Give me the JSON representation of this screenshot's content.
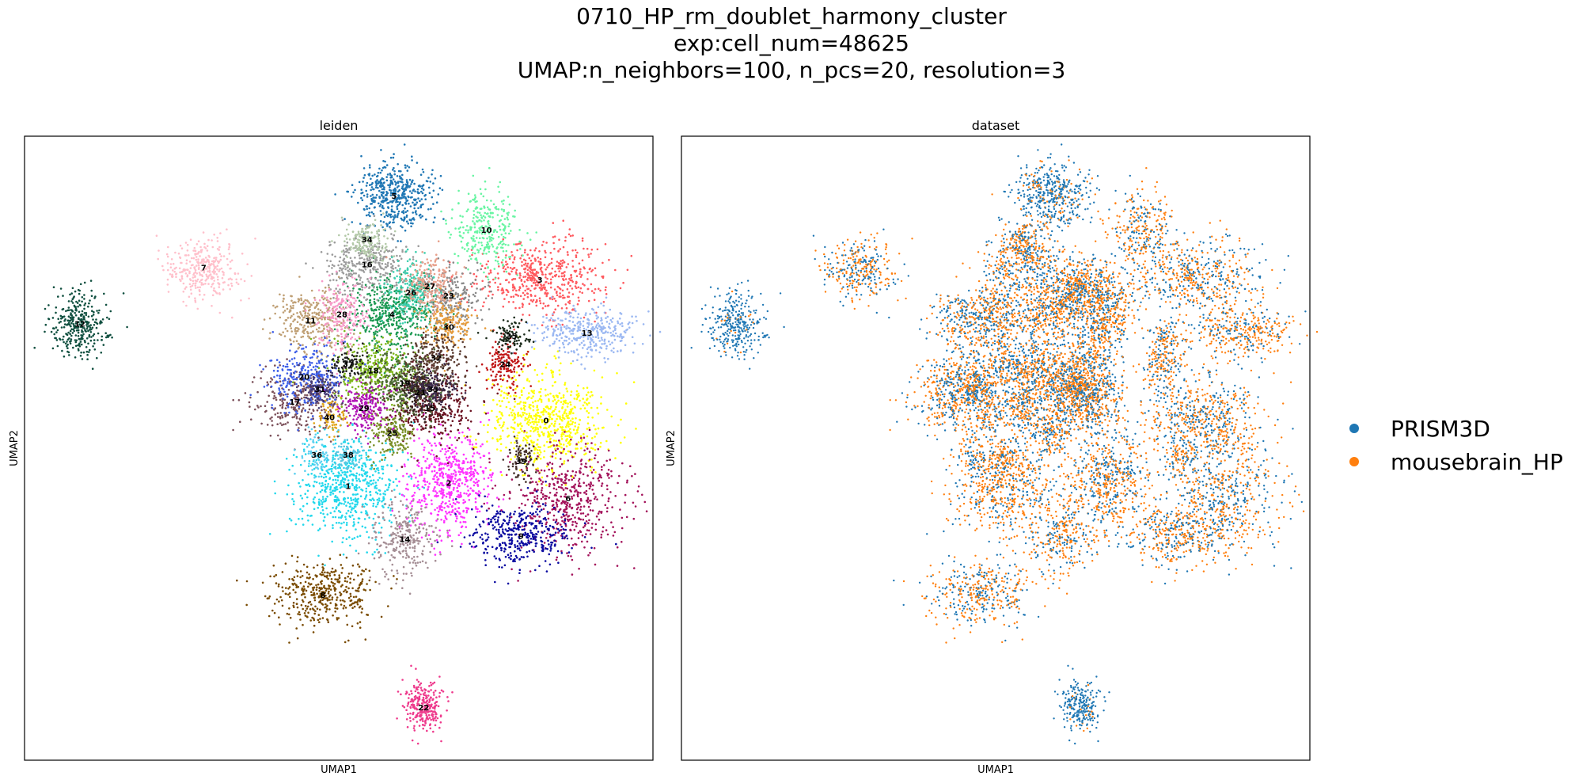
{
  "figure": {
    "title_lines": [
      "0710_HP_rm_doublet_harmony_cluster",
      "exp:cell_num=48625",
      "UMAP:n_neighbors=100, n_pcs=20, resolution=3"
    ]
  },
  "chart_data": [
    {
      "type": "scatter",
      "title": "leiden",
      "xlabel": "UMAP1",
      "ylabel": "UMAP2",
      "xlim": [
        0,
        100
      ],
      "ylim": [
        0,
        100
      ],
      "grid": false,
      "legend": "none",
      "clusters": [
        {
          "label": "0",
          "x": 83.0,
          "y": 54.5,
          "sx": 4.5,
          "sy": 3.8,
          "n": 650,
          "color": "#ffff00"
        },
        {
          "label": "1",
          "x": 51.5,
          "y": 44.0,
          "sx": 4.2,
          "sy": 4.2,
          "n": 620,
          "color": "#23d8ec"
        },
        {
          "label": "2",
          "x": 67.5,
          "y": 44.5,
          "sx": 3.5,
          "sy": 4.0,
          "n": 560,
          "color": "#ff33ff"
        },
        {
          "label": "3",
          "x": 82.0,
          "y": 77.0,
          "sx": 5.0,
          "sy": 3.0,
          "n": 520,
          "color": "#ff5a5f"
        },
        {
          "label": "4",
          "x": 58.5,
          "y": 71.5,
          "sx": 3.3,
          "sy": 3.0,
          "n": 480,
          "color": "#1a9851"
        },
        {
          "label": "5",
          "x": 58.8,
          "y": 90.5,
          "sx": 3.0,
          "sy": 2.5,
          "n": 460,
          "color": "#1f77b4"
        },
        {
          "label": "6",
          "x": 86.5,
          "y": 42.0,
          "sx": 4.5,
          "sy": 4.5,
          "n": 520,
          "color": "#a3125a"
        },
        {
          "label": "7",
          "x": 28.5,
          "y": 79.0,
          "sx": 3.0,
          "sy": 2.5,
          "n": 320,
          "color": "#ffc0cb"
        },
        {
          "label": "8",
          "x": 47.5,
          "y": 26.5,
          "sx": 4.0,
          "sy": 2.5,
          "n": 400,
          "color": "#7a4b00"
        },
        {
          "label": "9",
          "x": 79.0,
          "y": 36.0,
          "sx": 4.0,
          "sy": 2.5,
          "n": 380,
          "color": "#0a0aa0"
        },
        {
          "label": "10",
          "x": 73.5,
          "y": 85.0,
          "sx": 2.5,
          "sy": 3.0,
          "n": 300,
          "color": "#69f5a3"
        },
        {
          "label": "11",
          "x": 45.5,
          "y": 70.5,
          "sx": 2.8,
          "sy": 2.5,
          "n": 300,
          "color": "#bf9f74"
        },
        {
          "label": "12",
          "x": 8.8,
          "y": 70.0,
          "sx": 2.2,
          "sy": 2.5,
          "n": 320,
          "color": "#0f4f3f"
        },
        {
          "label": "13",
          "x": 89.5,
          "y": 68.5,
          "sx": 3.8,
          "sy": 2.0,
          "n": 340,
          "color": "#9bb8f2"
        },
        {
          "label": "14",
          "x": 60.5,
          "y": 35.5,
          "sx": 2.5,
          "sy": 3.0,
          "n": 260,
          "color": "#a58e95"
        },
        {
          "label": "15",
          "x": 64.5,
          "y": 56.5,
          "sx": 3.5,
          "sy": 3.0,
          "n": 340,
          "color": "#6b1322"
        },
        {
          "label": "16",
          "x": 54.5,
          "y": 79.5,
          "sx": 3.2,
          "sy": 2.5,
          "n": 320,
          "color": "#9b9b9b"
        },
        {
          "label": "17",
          "x": 43.0,
          "y": 57.5,
          "sx": 3.5,
          "sy": 2.5,
          "n": 300,
          "color": "#7b4f59"
        },
        {
          "label": "18",
          "x": 55.5,
          "y": 62.5,
          "sx": 3.5,
          "sy": 2.5,
          "n": 340,
          "color": "#7cb518"
        },
        {
          "label": "19",
          "x": 60.5,
          "y": 60.5,
          "sx": 3.0,
          "sy": 2.5,
          "n": 300,
          "color": "#4d6b34"
        },
        {
          "label": "20",
          "x": 44.5,
          "y": 61.5,
          "sx": 3.0,
          "sy": 2.5,
          "n": 280,
          "color": "#3d5ee8"
        },
        {
          "label": "21",
          "x": 63.0,
          "y": 59.0,
          "sx": 2.0,
          "sy": 2.0,
          "n": 200,
          "color": "#35241c"
        },
        {
          "label": "22",
          "x": 63.5,
          "y": 8.5,
          "sx": 1.8,
          "sy": 2.2,
          "n": 240,
          "color": "#ee3a8c"
        },
        {
          "label": "23",
          "x": 67.5,
          "y": 74.5,
          "sx": 2.5,
          "sy": 2.5,
          "n": 260,
          "color": "#8a8a8a"
        },
        {
          "label": "24",
          "x": 76.5,
          "y": 63.5,
          "sx": 1.6,
          "sy": 2.0,
          "n": 150,
          "color": "#c11515"
        },
        {
          "label": "25",
          "x": 58.5,
          "y": 52.5,
          "sx": 1.8,
          "sy": 2.0,
          "n": 180,
          "color": "#7a8f27"
        },
        {
          "label": "26",
          "x": 61.5,
          "y": 75.0,
          "sx": 2.0,
          "sy": 2.5,
          "n": 220,
          "color": "#3ccfae"
        },
        {
          "label": "27",
          "x": 64.5,
          "y": 76.0,
          "sx": 2.0,
          "sy": 2.2,
          "n": 200,
          "color": "#e8a08c"
        },
        {
          "label": "28",
          "x": 50.5,
          "y": 71.5,
          "sx": 2.0,
          "sy": 2.8,
          "n": 230,
          "color": "#f799c8"
        },
        {
          "label": "29",
          "x": 54.0,
          "y": 56.5,
          "sx": 2.0,
          "sy": 2.0,
          "n": 200,
          "color": "#b012b5"
        },
        {
          "label": "30",
          "x": 67.5,
          "y": 69.5,
          "sx": 2.0,
          "sy": 2.0,
          "n": 180,
          "color": "#e69b3a"
        },
        {
          "label": "31",
          "x": 47.0,
          "y": 59.5,
          "sx": 1.5,
          "sy": 1.5,
          "n": 120,
          "color": "#463a74"
        },
        {
          "label": "32",
          "x": 65.5,
          "y": 64.5,
          "sx": 2.5,
          "sy": 2.2,
          "n": 220,
          "color": "#5a3a2f"
        },
        {
          "label": "33",
          "x": 65.0,
          "y": 59.5,
          "sx": 2.0,
          "sy": 1.8,
          "n": 160,
          "color": "#3b2b4b"
        },
        {
          "label": "34",
          "x": 54.5,
          "y": 83.5,
          "sx": 2.0,
          "sy": 1.5,
          "n": 160,
          "color": "#b3c9a8"
        },
        {
          "label": "35",
          "x": 77.5,
          "y": 68.0,
          "sx": 1.5,
          "sy": 1.2,
          "n": 90,
          "color": "#1b2b1b"
        },
        {
          "label": "36",
          "x": 46.5,
          "y": 49.0,
          "sx": 1.2,
          "sy": 1.5,
          "n": 80,
          "color": "#5bd0f0"
        },
        {
          "label": "37",
          "x": 51.5,
          "y": 63.5,
          "sx": 1.5,
          "sy": 1.2,
          "n": 90,
          "color": "#202020"
        },
        {
          "label": "38",
          "x": 51.5,
          "y": 49.0,
          "sx": 1.2,
          "sy": 1.2,
          "n": 80,
          "color": "#58c6e0"
        },
        {
          "label": "39",
          "x": 79.0,
          "y": 48.0,
          "sx": 1.2,
          "sy": 1.5,
          "n": 80,
          "color": "#44302a"
        },
        {
          "label": "40",
          "x": 48.5,
          "y": 55.0,
          "sx": 1.2,
          "sy": 1.2,
          "n": 70,
          "color": "#e0a317"
        }
      ]
    },
    {
      "type": "scatter",
      "title": "dataset",
      "xlabel": "UMAP1",
      "ylabel": "UMAP2",
      "xlim": [
        0,
        100
      ],
      "ylim": [
        0,
        100
      ],
      "grid": false,
      "legend": "right",
      "series": [
        {
          "name": "PRISM3D",
          "color": "#1f77b4"
        },
        {
          "name": "mousebrain_HP",
          "color": "#ff7f0e"
        }
      ]
    }
  ]
}
